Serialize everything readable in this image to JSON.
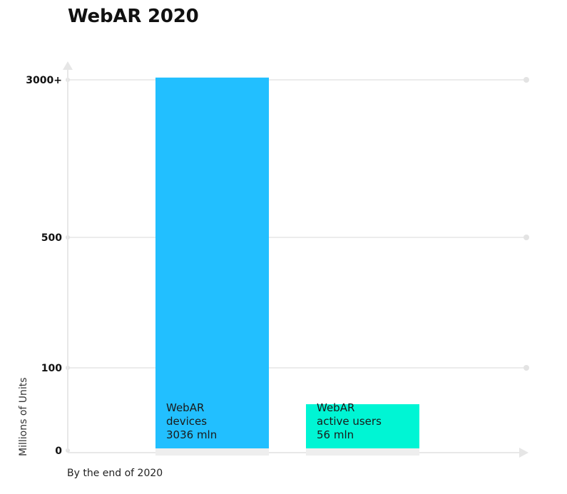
{
  "chart_data": {
    "type": "bar",
    "title": "WebAR 2020",
    "ylabel": "Millions of Units",
    "xlabel": "By the end of 2020",
    "y_ticks": [
      {
        "label": "0",
        "value": 0
      },
      {
        "label": "100",
        "value": 100
      },
      {
        "label": "500",
        "value": 500
      },
      {
        "label": "3000+",
        "value": 3000
      }
    ],
    "bars": [
      {
        "label_lines": [
          "WebAR",
          "devices",
          "3036 mln"
        ],
        "value": 3036,
        "color": "#22BFFF"
      },
      {
        "label_lines": [
          "WebAR",
          "active users",
          "56 mln"
        ],
        "value": 56,
        "color": "#00F5D4"
      }
    ],
    "grid": true,
    "colors": {
      "grid": "#ececec",
      "axis": "#e8e8e8",
      "base": "#eeeeee"
    }
  }
}
